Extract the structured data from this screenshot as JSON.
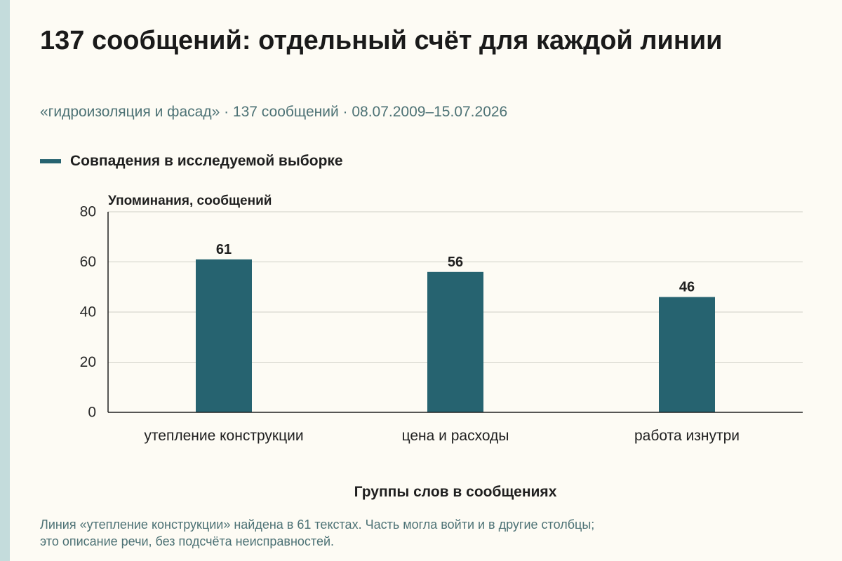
{
  "header": {
    "title": "137 сообщений: отдельный счёт для каждой линии",
    "subtitle": "«гидроизоляция и фасад» · 137 сообщений · 08.07.2009–15.07.2026"
  },
  "note": {
    "line1": "Линия «утепление конструкции» найдена в 61 текстах. Часть могла войти и в другие столбцы;",
    "line2": "это описание речи, без подсчёта неисправностей."
  },
  "colors": {
    "bar": "#266370",
    "grid": "#cfcfc6",
    "axis": "#1f1f1f",
    "subtitle": "#4d7275",
    "stripe": "#c4dcdc"
  },
  "chart_data": {
    "type": "bar",
    "title": "",
    "categories": [
      "утепление конструкции",
      "цена и расходы",
      "работа изнутри"
    ],
    "series": [
      {
        "name": "Совпадения в исследуемой выборке",
        "values": [
          61,
          56,
          46
        ]
      }
    ],
    "data_labels": [
      "61",
      "56",
      "46"
    ],
    "xlabel": "Группы слов в сообщениях",
    "ylabel": "Упоминания, сообщений",
    "ylim": [
      0,
      80
    ],
    "yticks": [
      0,
      20,
      40,
      60,
      80
    ],
    "grid": true,
    "legend": "top-left"
  }
}
